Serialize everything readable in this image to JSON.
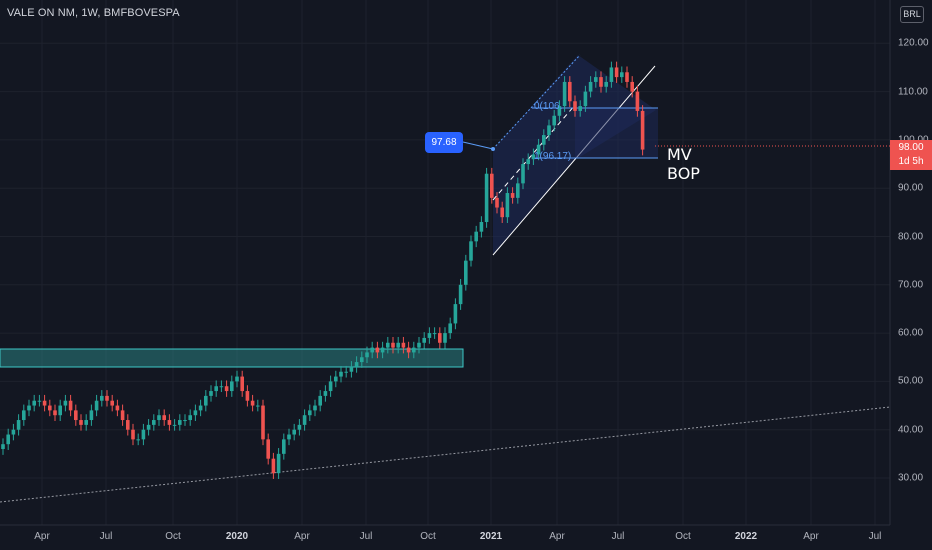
{
  "header": {
    "symbol_title": "VALE ON NM, 1W, BMFBOVESPA",
    "currency_button": "BRL"
  },
  "price_scale": {
    "ticks": [
      "120.00",
      "110.00",
      "100.00",
      "90.00",
      "80.00",
      "70.00",
      "60.00",
      "50.00",
      "40.00",
      "30.00"
    ],
    "last_price": "98.00",
    "countdown": "1d 5h"
  },
  "time_scale": {
    "ticks": [
      {
        "label": "Apr",
        "year": false
      },
      {
        "label": "Jul",
        "year": false
      },
      {
        "label": "Oct",
        "year": false
      },
      {
        "label": "2020",
        "year": true
      },
      {
        "label": "Apr",
        "year": false
      },
      {
        "label": "Jul",
        "year": false
      },
      {
        "label": "Oct",
        "year": false
      },
      {
        "label": "2021",
        "year": true
      },
      {
        "label": "Apr",
        "year": false
      },
      {
        "label": "Jul",
        "year": false
      },
      {
        "label": "Oct",
        "year": false
      },
      {
        "label": "2022",
        "year": true
      },
      {
        "label": "Apr",
        "year": false
      },
      {
        "label": "Jul",
        "year": false
      }
    ]
  },
  "drawings": {
    "callout_value": "97.68",
    "annotation_line1": "MV",
    "annotation_line2": "BOP",
    "fib_level_top": "0(106.",
    "fib_level_bottom": "1(96.17)"
  },
  "colors": {
    "background": "#131722",
    "up": "#26a69a",
    "down": "#ef5350",
    "zone": "#2a7f80",
    "callout": "#2962ff",
    "channel": "#1e2a5a"
  },
  "chart_data": {
    "type": "candlestick",
    "title": "VALE ON NM, 1W, BMFBOVESPA",
    "ylim": [
      23,
      124
    ],
    "y_ticks": [
      30,
      40,
      50,
      60,
      70,
      80,
      90,
      100,
      110,
      120
    ],
    "x_range": [
      "2019-02",
      "2022-09"
    ],
    "support_zone": {
      "low": 53.0,
      "high": 56.5,
      "x_start": "2019-02",
      "x_end": "2020-12"
    },
    "trendline": {
      "from": {
        "x": "2019-02",
        "y": 24.5
      },
      "to": {
        "x": "2022-09",
        "y": 45.0
      }
    },
    "regression_channel": {
      "from": "2021-01",
      "to": "2021-07",
      "upper_start": 97.7,
      "upper_end": 118.0,
      "lower_start": 77.0,
      "lower_end": 97.0
    },
    "fib_levels": [
      106.3,
      96.17
    ],
    "callout": 97.68,
    "last": 98.0,
    "closes": [
      37,
      39,
      40,
      42,
      44,
      45,
      46,
      46,
      45,
      44,
      43,
      45,
      46,
      44,
      42,
      41,
      42,
      44,
      46,
      47,
      46,
      45,
      44,
      42,
      40,
      38,
      38,
      40,
      41,
      42,
      43,
      42,
      41,
      41,
      42,
      42,
      43,
      44,
      45,
      47,
      48,
      49,
      49,
      48,
      50,
      51,
      48,
      46,
      45,
      45,
      38,
      34,
      31,
      35,
      38,
      39,
      40,
      41,
      43,
      44,
      45,
      47,
      48,
      50,
      51,
      52,
      52,
      53,
      54,
      55,
      56,
      57,
      56,
      57,
      58,
      57,
      58,
      57,
      56,
      57,
      58,
      59,
      60,
      60,
      58,
      60,
      62,
      66,
      70,
      75,
      79,
      81,
      83,
      93,
      88,
      86,
      84,
      89,
      88,
      91,
      95,
      96,
      97,
      99,
      101,
      103,
      105,
      107,
      112,
      108,
      106,
      107,
      110,
      112,
      113,
      111,
      112,
      115,
      113,
      114,
      112,
      110,
      106,
      98
    ]
  }
}
